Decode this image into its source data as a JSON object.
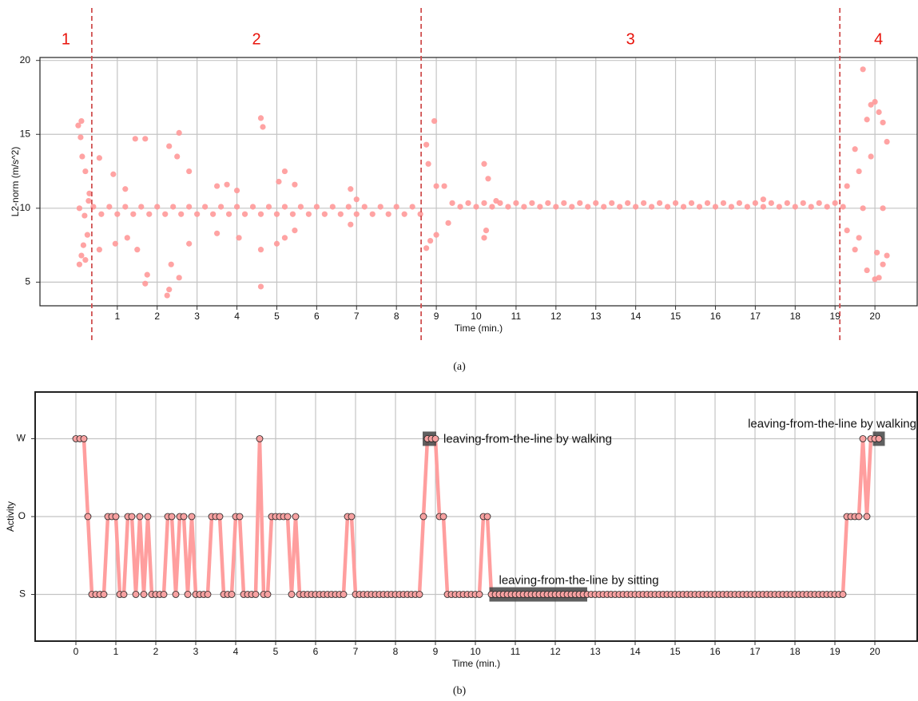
{
  "chart_data": [
    {
      "type": "scatter",
      "caption": "(a)",
      "x_label": "Time (min.)",
      "y_label": "L2-norm (m/s^2)",
      "color": "#ff9999",
      "xlim": [
        -0.94,
        21.06
      ],
      "ylim": [
        3.4,
        20.2
      ],
      "xticks": [
        1,
        2,
        3,
        4,
        5,
        6,
        7,
        8,
        9,
        10,
        11,
        12,
        13,
        14,
        15,
        16,
        17,
        18,
        19,
        20
      ],
      "yticks": [
        5,
        10,
        15,
        20
      ],
      "grid": true,
      "vlines": [
        0.36,
        8.62,
        19.12
      ],
      "vline_color": "#d05050",
      "phase_labels": [
        "1",
        "2",
        "3",
        "4"
      ],
      "phase_color": "#e8140c",
      "x": [
        0.02,
        0.05,
        0.08,
        0.1,
        0.12,
        0.15,
        0.2,
        0.25,
        0.3,
        0.05,
        0.18,
        0.28,
        0.1,
        0.2,
        0.4,
        0.6,
        0.8,
        1,
        1.2,
        1.4,
        1.6,
        1.8,
        2,
        2.2,
        2.4,
        2.6,
        2.8,
        3,
        3.2,
        3.4,
        3.6,
        3.8,
        4,
        4.2,
        4.4,
        4.6,
        4.8,
        5,
        5.2,
        5.4,
        5.6,
        5.8,
        6,
        6.2,
        6.4,
        6.6,
        6.8,
        7,
        7.2,
        7.4,
        7.6,
        7.8,
        8,
        8.2,
        8.4,
        8.6,
        0.55,
        0.55,
        0.9,
        0.95,
        1.2,
        1.25,
        1.45,
        1.5,
        1.7,
        1.7,
        1.75,
        2.3,
        2.3,
        2.25,
        2.35,
        2.55,
        2.55,
        2.5,
        2.8,
        2.8,
        3.5,
        3.5,
        3.75,
        4,
        4.05,
        4.6,
        4.6,
        4.65,
        4.6,
        5.05,
        5,
        5.2,
        5.2,
        5.45,
        5.45,
        6.85,
        6.85,
        7,
        8.75,
        8.75,
        8.8,
        8.85,
        8.95,
        9,
        9,
        9.2,
        9.3,
        10.2,
        10.2,
        10.3,
        10.25,
        10.5,
        17.2,
        9.4,
        9.6,
        9.8,
        10,
        10.2,
        10.4,
        10.6,
        10.8,
        11,
        11.2,
        11.4,
        11.6,
        11.8,
        12,
        12.2,
        12.4,
        12.6,
        12.8,
        13,
        13.2,
        13.4,
        13.6,
        13.8,
        14,
        14.2,
        14.4,
        14.6,
        14.8,
        15,
        15.2,
        15.4,
        15.6,
        15.8,
        16,
        16.2,
        16.4,
        16.6,
        16.8,
        17,
        17.2,
        17.4,
        17.6,
        17.8,
        18,
        18.2,
        18.4,
        18.6,
        18.8,
        19,
        19.2,
        19.5,
        19.5,
        19.7,
        19.8,
        19.8,
        19.9,
        20,
        20,
        20.1,
        20.1,
        20.2,
        20.2,
        20.3,
        20.3,
        19.3,
        19.3,
        19.6,
        19.6,
        19.9,
        20.05,
        19.7,
        20.2
      ],
      "values": [
        15.6,
        6.2,
        14.8,
        6.8,
        13.5,
        7.5,
        12.5,
        8.2,
        11,
        10,
        9.5,
        10.5,
        15.9,
        6.5,
        10.1,
        9.6,
        10.1,
        9.6,
        10.1,
        9.6,
        10.1,
        9.6,
        10.1,
        9.6,
        10.1,
        9.6,
        10.1,
        9.6,
        10.1,
        9.6,
        10.1,
        9.6,
        10.1,
        9.6,
        10.1,
        9.6,
        10.1,
        9.6,
        10.1,
        9.6,
        10.1,
        9.6,
        10.1,
        9.6,
        10.1,
        9.6,
        10.1,
        9.6,
        10.1,
        9.6,
        10.1,
        9.6,
        10.1,
        9.6,
        10.1,
        9.6,
        13.4,
        7.2,
        12.3,
        7.6,
        11.3,
        8,
        14.7,
        7.2,
        14.7,
        4.9,
        5.5,
        14.2,
        4.5,
        4.1,
        6.2,
        15.1,
        5.3,
        13.5,
        12.5,
        7.6,
        11.5,
        8.3,
        11.6,
        11.2,
        8,
        16.1,
        4.7,
        15.5,
        7.2,
        11.8,
        7.6,
        12.5,
        8,
        11.6,
        8.5,
        11.3,
        8.9,
        10.6,
        14.3,
        7.3,
        13,
        7.8,
        15.9,
        11.5,
        8.2,
        11.5,
        9,
        13,
        8,
        12,
        8.5,
        10.5,
        10.6,
        10.35,
        10.1,
        10.35,
        10.1,
        10.35,
        10.1,
        10.35,
        10.1,
        10.35,
        10.1,
        10.35,
        10.1,
        10.35,
        10.1,
        10.35,
        10.1,
        10.35,
        10.1,
        10.35,
        10.1,
        10.35,
        10.1,
        10.35,
        10.1,
        10.35,
        10.1,
        10.35,
        10.1,
        10.35,
        10.1,
        10.35,
        10.1,
        10.35,
        10.1,
        10.35,
        10.1,
        10.35,
        10.1,
        10.35,
        10.1,
        10.35,
        10.1,
        10.35,
        10.1,
        10.35,
        10.1,
        10.35,
        10.1,
        10.35,
        10.1,
        14,
        7.2,
        19.4,
        16,
        5.8,
        17,
        17.2,
        5.2,
        16.5,
        5.3,
        15.8,
        6.2,
        14.5,
        6.8,
        11.5,
        8.5,
        12.5,
        8,
        13.5,
        7,
        10,
        10
      ]
    },
    {
      "type": "line",
      "caption": "(b)",
      "x_label": "Time (min.)",
      "y_label": "Activity",
      "color": "#ff9e9e",
      "marker_color": "#f7a1a1",
      "xlim": [
        -1.02,
        21.06
      ],
      "ylim": [
        -0.6,
        2.6
      ],
      "xticks": [
        0,
        1,
        2,
        3,
        4,
        5,
        6,
        7,
        8,
        9,
        10,
        11,
        12,
        13,
        14,
        15,
        16,
        17,
        18,
        19,
        20
      ],
      "ycategories": [
        "S",
        "O",
        "W"
      ],
      "grid": true,
      "annotations": [
        {
          "text": "leaving-from-the-line by walking",
          "span": [
            8.68,
            9.02
          ],
          "category": "W"
        },
        {
          "text": "leaving-from-the-line by sitting",
          "span": [
            10.35,
            12.8
          ],
          "category": "S"
        },
        {
          "text": "leaving-from-the-line by walking",
          "span": [
            19.95,
            20.25
          ],
          "category": "W"
        }
      ],
      "x": [
        0,
        0.1,
        0.2,
        0.3,
        0.4,
        0.5,
        0.6,
        0.7,
        0.8,
        0.9,
        1,
        1.1,
        1.2,
        1.3,
        1.4,
        1.5,
        1.6,
        1.7,
        1.8,
        1.9,
        2,
        2.1,
        2.2,
        2.3,
        2.4,
        2.5,
        2.6,
        2.7,
        2.8,
        2.9,
        3,
        3.1,
        3.2,
        3.3,
        3.4,
        3.5,
        3.6,
        3.7,
        3.8,
        3.9,
        4,
        4.1,
        4.2,
        4.3,
        4.4,
        4.5,
        4.6,
        4.7,
        4.8,
        4.9,
        5,
        5.1,
        5.2,
        5.3,
        5.4,
        5.5,
        5.6,
        5.7,
        5.8,
        5.9,
        6,
        6.1,
        6.2,
        6.3,
        6.4,
        6.5,
        6.6,
        6.7,
        6.8,
        6.9,
        7,
        7.1,
        7.2,
        7.3,
        7.4,
        7.5,
        7.6,
        7.7,
        7.8,
        7.9,
        8,
        8.1,
        8.2,
        8.3,
        8.4,
        8.5,
        8.6,
        8.7,
        8.8,
        8.9,
        9,
        9.1,
        9.2,
        9.3,
        9.4,
        9.5,
        9.6,
        9.7,
        9.8,
        9.9,
        10,
        10.1,
        10.2,
        10.3,
        10.4,
        10.5,
        10.6,
        10.7,
        10.8,
        10.9,
        11,
        11.1,
        11.2,
        11.3,
        11.4,
        11.5,
        11.6,
        11.7,
        11.8,
        11.9,
        12,
        12.1,
        12.2,
        12.3,
        12.4,
        12.5,
        12.6,
        12.7,
        12.8,
        12.9,
        13,
        13.1,
        13.2,
        13.3,
        13.4,
        13.5,
        13.6,
        13.7,
        13.8,
        13.9,
        14,
        14.1,
        14.2,
        14.3,
        14.4,
        14.5,
        14.6,
        14.7,
        14.8,
        14.9,
        15,
        15.1,
        15.2,
        15.3,
        15.4,
        15.5,
        15.6,
        15.7,
        15.8,
        15.9,
        16,
        16.1,
        16.2,
        16.3,
        16.4,
        16.5,
        16.6,
        16.7,
        16.8,
        16.9,
        17,
        17.1,
        17.2,
        17.3,
        17.4,
        17.5,
        17.6,
        17.7,
        17.8,
        17.9,
        18,
        18.1,
        18.2,
        18.3,
        18.4,
        18.5,
        18.6,
        18.7,
        18.8,
        18.9,
        19,
        19.1,
        19.2,
        19.3,
        19.4,
        19.5,
        19.6,
        19.7,
        19.8,
        19.9,
        20,
        20.1
      ],
      "values": [
        "W",
        "W",
        "W",
        "O",
        "S",
        "S",
        "S",
        "S",
        "O",
        "O",
        "O",
        "S",
        "S",
        "O",
        "O",
        "S",
        "O",
        "S",
        "O",
        "S",
        "S",
        "S",
        "S",
        "O",
        "O",
        "S",
        "O",
        "O",
        "S",
        "O",
        "S",
        "S",
        "S",
        "S",
        "O",
        "O",
        "O",
        "S",
        "S",
        "S",
        "O",
        "O",
        "S",
        "S",
        "S",
        "S",
        "W",
        "S",
        "S",
        "O",
        "O",
        "O",
        "O",
        "O",
        "S",
        "O",
        "S",
        "S",
        "S",
        "S",
        "S",
        "S",
        "S",
        "S",
        "S",
        "S",
        "S",
        "S",
        "O",
        "O",
        "S",
        "S",
        "S",
        "S",
        "S",
        "S",
        "S",
        "S",
        "S",
        "S",
        "S",
        "S",
        "S",
        "S",
        "S",
        "S",
        "S",
        "O",
        "W",
        "W",
        "W",
        "O",
        "O",
        "S",
        "S",
        "S",
        "S",
        "S",
        "S",
        "S",
        "S",
        "S",
        "O",
        "O",
        "S",
        "S",
        "S",
        "S",
        "S",
        "S",
        "S",
        "S",
        "S",
        "S",
        "S",
        "S",
        "S",
        "S",
        "S",
        "S",
        "S",
        "S",
        "S",
        "S",
        "S",
        "S",
        "S",
        "S",
        "S",
        "S",
        "S",
        "S",
        "S",
        "S",
        "S",
        "S",
        "S",
        "S",
        "S",
        "S",
        "S",
        "S",
        "S",
        "S",
        "S",
        "S",
        "S",
        "S",
        "S",
        "S",
        "S",
        "S",
        "S",
        "S",
        "S",
        "S",
        "S",
        "S",
        "S",
        "S",
        "S",
        "S",
        "S",
        "S",
        "S",
        "S",
        "S",
        "S",
        "S",
        "S",
        "S",
        "S",
        "S",
        "S",
        "S",
        "S",
        "S",
        "S",
        "S",
        "S",
        "S",
        "S",
        "S",
        "S",
        "S",
        "S",
        "S",
        "S",
        "S",
        "S",
        "S",
        "S",
        "S",
        "O",
        "O",
        "O",
        "O",
        "W",
        "O",
        "W",
        "W",
        "W"
      ]
    }
  ]
}
